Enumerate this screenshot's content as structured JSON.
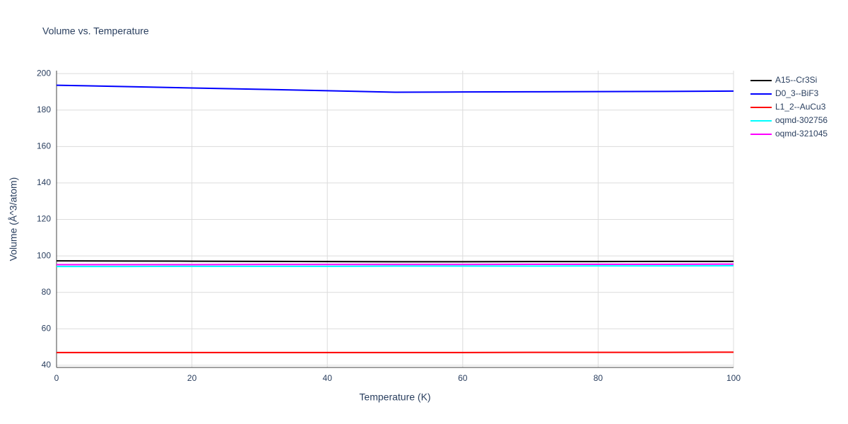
{
  "chart_data": {
    "type": "line",
    "title": "Volume vs. Temperature",
    "x_label": "Temperature (K)",
    "y_label": "Volume (Å^3/atom)",
    "x": [
      0,
      10,
      20,
      30,
      40,
      50,
      60,
      70,
      80,
      90,
      100
    ],
    "series": [
      {
        "name": "A15--Cr3Si",
        "color": "#000000",
        "values": [
          97.3,
          97.2,
          97.1,
          97.0,
          96.9,
          96.8,
          96.8,
          96.9,
          96.9,
          97.0,
          97.0
        ]
      },
      {
        "name": "D0_3--BiF3",
        "color": "#0000ff",
        "values": [
          193.6,
          192.9,
          192.1,
          191.4,
          190.6,
          189.8,
          189.9,
          190.0,
          190.1,
          190.2,
          190.4
        ]
      },
      {
        "name": "L1_2--AuCu3",
        "color": "#ff0000",
        "values": [
          47.0,
          47.0,
          47.0,
          47.0,
          47.0,
          47.0,
          47.0,
          47.1,
          47.1,
          47.1,
          47.2
        ]
      },
      {
        "name": "oqmd-302756",
        "color": "#00ffff",
        "values": [
          94.2,
          94.2,
          94.3,
          94.3,
          94.3,
          94.4,
          94.4,
          94.4,
          94.5,
          94.5,
          94.6
        ]
      },
      {
        "name": "oqmd-321045",
        "color": "#ff00ff",
        "values": [
          95.2,
          95.2,
          95.2,
          95.3,
          95.3,
          95.3,
          95.3,
          95.4,
          95.4,
          95.4,
          95.5
        ]
      }
    ],
    "xlim": [
      0,
      100
    ],
    "xticks": [
      0,
      20,
      40,
      60,
      80,
      100
    ],
    "ylim": [
      38.8,
      201.6
    ],
    "yticks": [
      40,
      60,
      80,
      100,
      120,
      140,
      160,
      180,
      200
    ],
    "grid": true,
    "legend": "right"
  }
}
